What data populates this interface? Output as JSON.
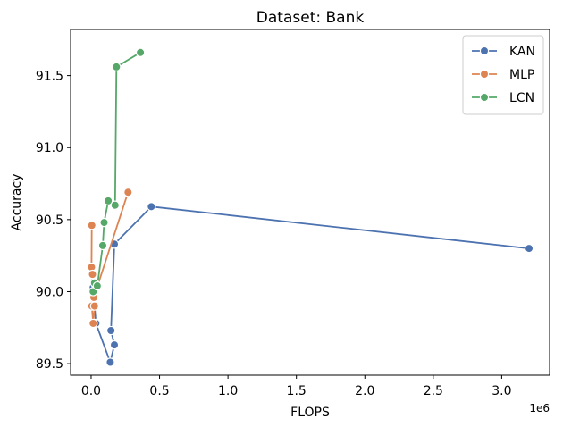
{
  "chart_data": {
    "type": "line",
    "title": "Dataset: Bank",
    "xlabel": "FLOPS",
    "ylabel": "Accuracy",
    "x_offset_label": "1e6",
    "xlim": [
      -150000,
      3350000
    ],
    "ylim": [
      89.42,
      91.82
    ],
    "x_ticks": [
      0,
      500000,
      1000000,
      1500000,
      2000000,
      2500000,
      3000000
    ],
    "x_tick_labels": [
      "0.0",
      "0.5",
      "1.0",
      "1.5",
      "2.0",
      "2.5",
      "3.0"
    ],
    "y_ticks": [
      89.5,
      90.0,
      90.5,
      91.0,
      91.5
    ],
    "y_tick_labels": [
      "89.5",
      "90.0",
      "90.5",
      "91.0",
      "91.5"
    ],
    "grid": false,
    "legend_position": "top-right",
    "series": [
      {
        "name": "KAN",
        "color": "#4c72b0",
        "x": [
          15000,
          35000,
          140000,
          170000,
          145000,
          170000,
          440000,
          3200000
        ],
        "y": [
          90.03,
          89.78,
          89.51,
          89.63,
          89.73,
          90.33,
          90.59,
          90.3
        ]
      },
      {
        "name": "MLP",
        "color": "#dd8452",
        "x": [
          5000,
          3000,
          10000,
          5000,
          15000,
          25000,
          20000,
          270000
        ],
        "y": [
          90.46,
          90.17,
          90.12,
          89.9,
          89.78,
          89.9,
          89.96,
          90.69
        ]
      },
      {
        "name": "LCN",
        "color": "#55a868",
        "x": [
          15000,
          25000,
          45000,
          85000,
          95000,
          125000,
          175000,
          185000,
          360000
        ],
        "y": [
          90.0,
          90.06,
          90.04,
          90.32,
          90.48,
          90.63,
          90.6,
          91.56,
          91.66
        ]
      }
    ]
  }
}
